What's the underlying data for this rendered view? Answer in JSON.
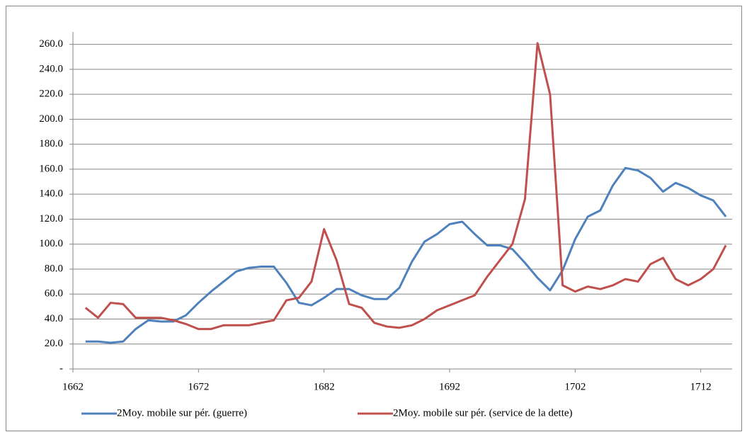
{
  "chart_data": {
    "type": "line",
    "x": [
      1663,
      1664,
      1665,
      1666,
      1667,
      1668,
      1669,
      1670,
      1671,
      1672,
      1673,
      1674,
      1675,
      1676,
      1677,
      1678,
      1679,
      1680,
      1681,
      1682,
      1683,
      1684,
      1685,
      1686,
      1687,
      1688,
      1689,
      1690,
      1691,
      1692,
      1693,
      1694,
      1695,
      1696,
      1697,
      1698,
      1699,
      1700,
      1701,
      1702,
      1703,
      1704,
      1705,
      1706,
      1707,
      1708,
      1709,
      1710,
      1711,
      1712,
      1713,
      1714
    ],
    "series": [
      {
        "name": "2Moy. mobile sur pér. (guerre)",
        "color": "#4f81bd",
        "values": [
          22,
          22,
          21,
          22,
          32,
          39,
          38,
          38,
          43,
          53,
          62,
          70,
          78,
          81,
          82,
          82,
          69,
          53,
          51,
          57,
          64,
          64,
          59,
          56,
          56,
          65,
          86,
          102,
          108,
          116,
          118,
          108,
          99,
          99,
          96,
          85,
          73,
          63,
          79,
          104,
          122,
          127,
          147,
          161,
          159,
          153,
          142,
          149,
          145,
          139,
          135,
          122
        ]
      },
      {
        "name": "2Moy. mobile sur pér. (service de la dette)",
        "color": "#c0504d",
        "values": [
          49,
          41,
          53,
          52,
          41,
          41,
          41,
          39,
          36,
          32,
          32,
          35,
          35,
          35,
          37,
          39,
          55,
          57,
          70,
          112,
          87,
          52,
          49,
          37,
          34,
          33,
          35,
          40,
          47,
          51,
          55,
          59,
          74,
          87,
          100,
          136,
          261,
          220,
          67,
          62,
          66,
          64,
          67,
          72,
          70,
          84,
          89,
          72,
          67,
          72,
          80,
          99
        ]
      }
    ],
    "xlim": [
      1662,
      1714.5
    ],
    "xticks": [
      1662,
      1672,
      1682,
      1692,
      1702,
      1712
    ],
    "ylim": [
      0,
      270
    ],
    "yticks": [
      {
        "value": 0,
        "label": "-"
      },
      {
        "value": 20,
        "label": "20.0"
      },
      {
        "value": 40,
        "label": "40.0"
      },
      {
        "value": 60,
        "label": "60.0"
      },
      {
        "value": 80,
        "label": "80.0"
      },
      {
        "value": 100,
        "label": "100.0"
      },
      {
        "value": 120,
        "label": "120.0"
      },
      {
        "value": 140,
        "label": "140.0"
      },
      {
        "value": 160,
        "label": "160.0"
      },
      {
        "value": 180,
        "label": "180.0"
      },
      {
        "value": 200,
        "label": "200.0"
      },
      {
        "value": 220,
        "label": "220.0"
      },
      {
        "value": 240,
        "label": "240.0"
      },
      {
        "value": 260,
        "label": "260.0"
      }
    ],
    "grid": true,
    "legend": "bottom"
  }
}
